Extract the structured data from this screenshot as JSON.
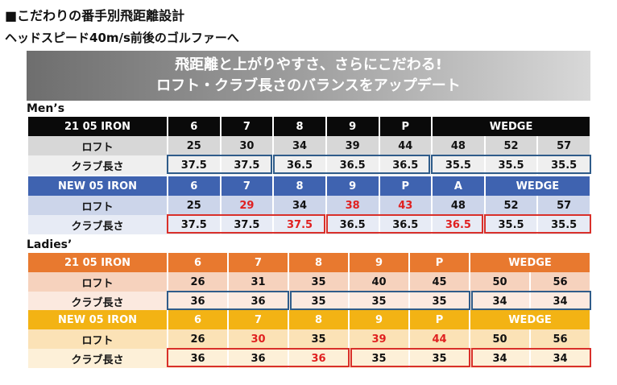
{
  "title": "■こだわりの番手別飛距離設計",
  "subtitle": "ヘッドスピード40m/s前後のゴルファーへ",
  "banner": {
    "line1": "飛距離と上がりやすさ、さらにこだわる!",
    "line2": "ロフト・クラブ長さのバランスをアップデート"
  },
  "mens": {
    "label": "Men’s",
    "old": {
      "name": "21 05 IRON",
      "headers": [
        "6",
        "7",
        "8",
        "9",
        "P",
        "WEDGE"
      ],
      "loft_label": "ロフト",
      "loft": [
        "25",
        "30",
        "34",
        "39",
        "44",
        "48",
        "52",
        "57"
      ],
      "length_label": "クラブ長さ",
      "length": [
        "37.5",
        "37.5",
        "36.5",
        "36.5",
        "36.5",
        "35.5",
        "35.5",
        "35.5"
      ]
    },
    "new": {
      "name": "NEW 05 IRON",
      "headers": [
        "6",
        "7",
        "8",
        "9",
        "P",
        "A",
        "WEDGE"
      ],
      "loft_label": "ロフト",
      "loft": [
        "25",
        "29",
        "34",
        "38",
        "43",
        "48",
        "52",
        "57"
      ],
      "length_label": "クラブ長さ",
      "length": [
        "37.5",
        "37.5",
        "37.5",
        "36.5",
        "36.5",
        "36.5",
        "35.5",
        "35.5"
      ]
    }
  },
  "ladies": {
    "label": "Ladies’",
    "old": {
      "name": "21 05 IRON",
      "headers": [
        "6",
        "7",
        "8",
        "9",
        "P",
        "WEDGE"
      ],
      "loft_label": "ロフト",
      "loft": [
        "26",
        "31",
        "35",
        "40",
        "45",
        "50",
        "56"
      ],
      "length_label": "クラブ長さ",
      "length": [
        "36",
        "36",
        "35",
        "35",
        "35",
        "34",
        "34"
      ]
    },
    "new": {
      "name": "NEW 05 IRON",
      "headers": [
        "6",
        "7",
        "8",
        "9",
        "P",
        "WEDGE"
      ],
      "loft_label": "ロフト",
      "loft": [
        "26",
        "30",
        "35",
        "39",
        "44",
        "50",
        "56"
      ],
      "length_label": "クラブ長さ",
      "length": [
        "36",
        "36",
        "36",
        "35",
        "35",
        "34",
        "34"
      ]
    }
  },
  "colors": {
    "mens_old_header": "#0a0a0a",
    "mens_new_header": "#3f63b0",
    "ladies_old_header": "#e8792f",
    "ladies_new_header": "#f3b314",
    "changed_value": "#e02020",
    "old_length_outline": "#2f5c8a",
    "new_length_outline": "#d9302a"
  }
}
